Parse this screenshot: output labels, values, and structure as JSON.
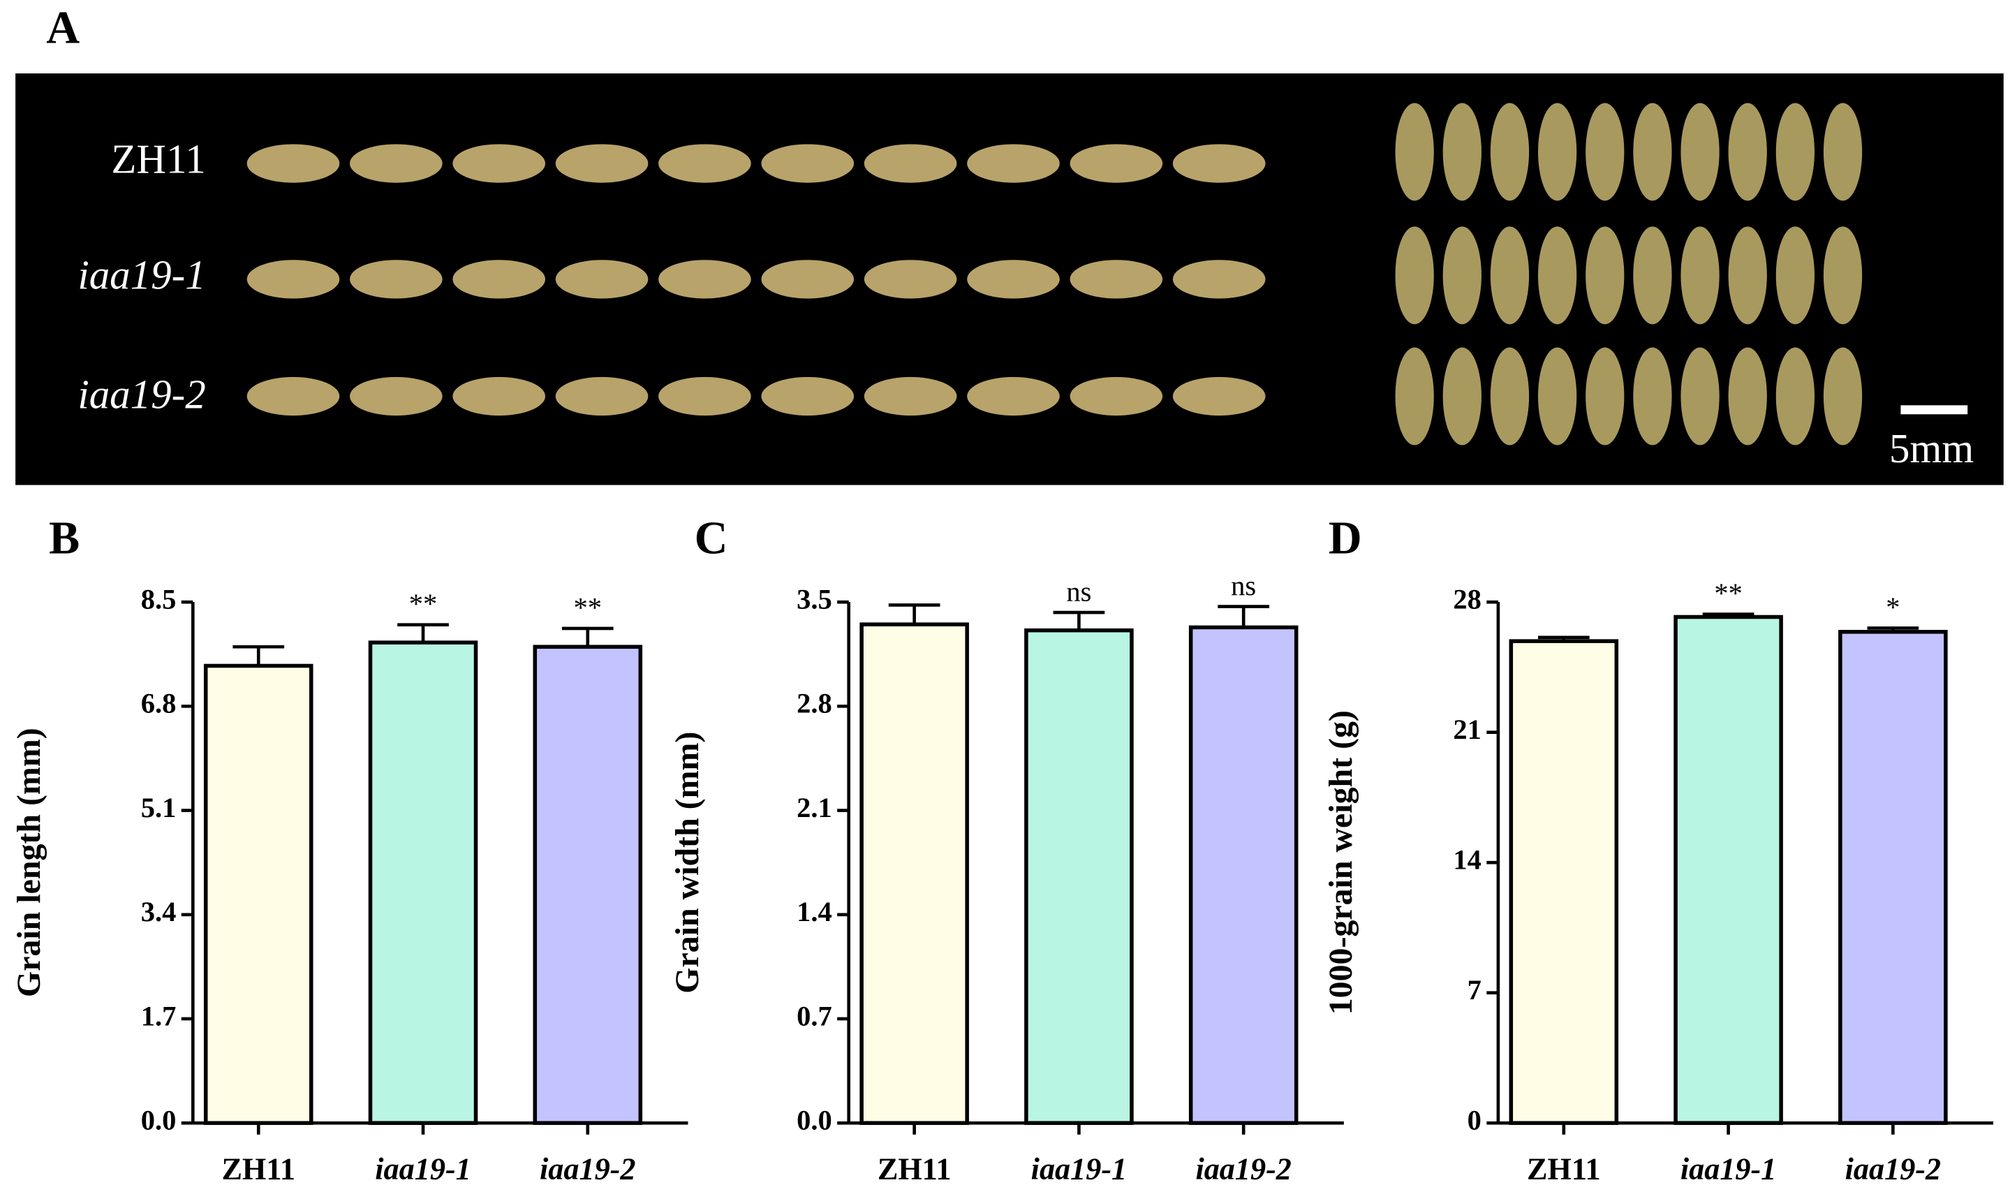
{
  "photo": {
    "panel": "A",
    "labels": [
      "ZH11",
      "iaa19-1",
      "iaa19-2"
    ],
    "scale_bar": "5mm"
  },
  "chart_data": [
    {
      "type": "bar",
      "panel": "B",
      "ylabel": "Grain length (mm)",
      "categories": [
        "ZH11",
        "iaa19-1",
        "iaa19-2"
      ],
      "values": [
        7.46,
        7.84,
        7.77
      ],
      "errors": [
        0.31,
        0.29,
        0.3
      ],
      "annotations": [
        null,
        "**",
        "**"
      ],
      "colors": [
        "#fffde5",
        "#b8f5e3",
        "#c3c3ff"
      ],
      "ylim": [
        0,
        8.5
      ],
      "yticks": [
        {
          "value": 0,
          "label": "0.0"
        },
        1.7,
        3.4,
        5.1,
        6.8,
        8.5
      ]
    },
    {
      "type": "bar",
      "panel": "C",
      "ylabel": "Grain width (mm)",
      "categories": [
        "ZH11",
        "iaa19-1",
        "iaa19-2"
      ],
      "values": [
        3.35,
        3.31,
        3.33
      ],
      "errors": [
        0.13,
        0.12,
        0.14
      ],
      "annotations": [
        null,
        "ns",
        "ns"
      ],
      "colors": [
        "#fffde5",
        "#b8f5e3",
        "#c3c3ff"
      ],
      "ylim": [
        0,
        3.5
      ],
      "yticks": [
        {
          "value": 0,
          "label": "0.0"
        },
        0.7,
        1.4,
        2.1,
        2.8,
        3.5
      ]
    },
    {
      "type": "bar",
      "panel": "D",
      "ylabel": "1000-grain weight (g)",
      "categories": [
        "ZH11",
        "iaa19-1",
        "iaa19-2"
      ],
      "values": [
        25.9,
        27.2,
        26.4
      ],
      "errors": [
        0.2,
        0.15,
        0.2
      ],
      "annotations": [
        null,
        "**",
        "*"
      ],
      "colors": [
        "#fffde5",
        "#b8f5e3",
        "#c3c3ff"
      ],
      "ylim": [
        0,
        28
      ],
      "yticks": [
        0,
        7,
        14,
        21,
        28
      ]
    }
  ]
}
